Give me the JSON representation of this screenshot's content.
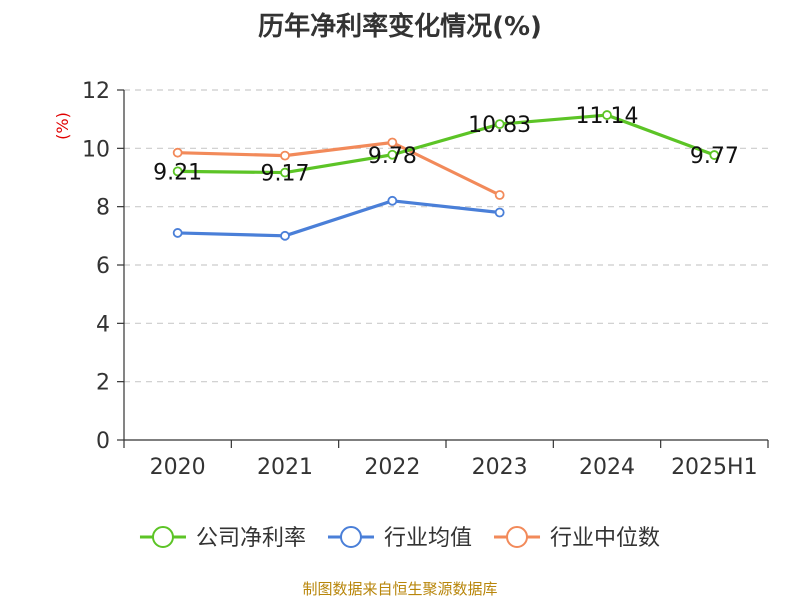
{
  "chart_data": {
    "type": "line",
    "title": "历年净利率变化情况(%)",
    "ylabel": "(%)",
    "categories": [
      "2020",
      "2021",
      "2022",
      "2023",
      "2024",
      "2025H1"
    ],
    "ylim": [
      0,
      12
    ],
    "yticks": [
      0,
      2,
      4,
      6,
      8,
      10,
      12
    ],
    "grid": true,
    "legend_position": "bottom",
    "series": [
      {
        "name": "公司净利率",
        "color": "#5cc426",
        "values": [
          9.21,
          9.17,
          9.78,
          10.83,
          11.14,
          9.77
        ],
        "labels": [
          "9.21",
          "9.17",
          "9.78",
          "10.83",
          "11.14",
          "9.77"
        ]
      },
      {
        "name": "行业均值",
        "color": "#4a7fd8",
        "values": [
          7.1,
          7.0,
          8.2,
          7.8,
          null,
          null
        ]
      },
      {
        "name": "行业中位数",
        "color": "#f28a5a",
        "values": [
          9.85,
          9.75,
          10.2,
          8.4,
          null,
          null
        ]
      }
    ]
  },
  "source": "制图数据来自恒生聚源数据库"
}
